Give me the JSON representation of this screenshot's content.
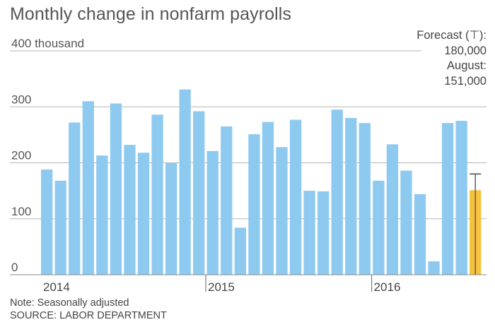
{
  "title": "Monthly change in nonfarm payrolls",
  "annotation": {
    "forecast_line": "Forecast (⊤):",
    "forecast_value": "180,000",
    "actual_line": "August:",
    "actual_value": "151,000"
  },
  "note": "Note: Seasonally adjusted",
  "source": "SOURCE: LABOR DEPARTMENT",
  "colors": {
    "bar": "#8ecaf0",
    "highlight": "#f6c23e",
    "forecast": "#555555",
    "grid": "#b5b5b5"
  },
  "chart_data": {
    "type": "bar",
    "title": "Monthly change in nonfarm payrolls",
    "ylabel": "",
    "xlabel": "",
    "ylim": [
      0,
      400
    ],
    "y_ticks": [
      0,
      100,
      200,
      300,
      400
    ],
    "y_tick_labels": [
      "0",
      "100",
      "200",
      "300",
      "400 thousand"
    ],
    "x_tick_labels": [
      "2014",
      "2015",
      "2016"
    ],
    "x_tick_positions": [
      0,
      12,
      24
    ],
    "categories": [
      "2014-01",
      "2014-02",
      "2014-03",
      "2014-04",
      "2014-05",
      "2014-06",
      "2014-07",
      "2014-08",
      "2014-09",
      "2014-10",
      "2014-11",
      "2014-12",
      "2015-01",
      "2015-02",
      "2015-03",
      "2015-04",
      "2015-05",
      "2015-06",
      "2015-07",
      "2015-08",
      "2015-09",
      "2015-10",
      "2015-11",
      "2015-12",
      "2016-01",
      "2016-02",
      "2016-03",
      "2016-04",
      "2016-05",
      "2016-06",
      "2016-07",
      "2016-08"
    ],
    "values": [
      188,
      168,
      272,
      310,
      213,
      306,
      232,
      218,
      286,
      200,
      331,
      292,
      221,
      265,
      84,
      251,
      273,
      228,
      277,
      150,
      149,
      295,
      280,
      271,
      168,
      233,
      186,
      144,
      24,
      271,
      275,
      151
    ],
    "highlight_index": 31,
    "forecast": {
      "index": 31,
      "value": 180
    },
    "grid": true
  }
}
